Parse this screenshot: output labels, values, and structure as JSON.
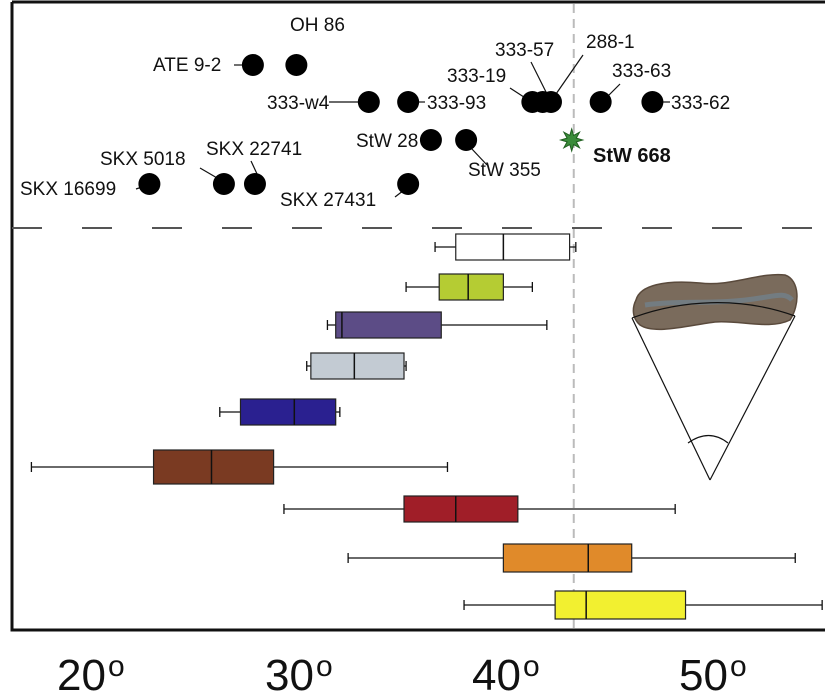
{
  "chart_data": {
    "type": "scatter",
    "xlabel": "",
    "ylabel": "",
    "x_axis": {
      "min": 15,
      "max": 55,
      "ticks": [
        20,
        30,
        40,
        50
      ],
      "tick_labels": [
        "20",
        "30",
        "40",
        "50"
      ],
      "degree_mark": "o"
    },
    "reference_line": {
      "x": 42.5,
      "style": "dashed",
      "color": "#bbbbbb"
    },
    "points": [
      {
        "label": "ATE 9-2",
        "x": 27.0,
        "row": 1
      },
      {
        "label": "OH 86",
        "x": 29.1,
        "row": 1
      },
      {
        "label": "333-w4",
        "x": 32.6,
        "row": 2
      },
      {
        "label": "333-93",
        "x": 34.5,
        "row": 2
      },
      {
        "label": "333-19",
        "x": 40.5,
        "row": 2
      },
      {
        "label": "333-57",
        "x": 41.0,
        "row": 2
      },
      {
        "label": "288-1",
        "x": 41.4,
        "row": 2
      },
      {
        "label": "333-63",
        "x": 43.8,
        "row": 2
      },
      {
        "label": "333-62",
        "x": 46.3,
        "row": 2
      },
      {
        "label": "StW 28",
        "x": 35.6,
        "row": 3
      },
      {
        "label": "StW 355",
        "x": 37.3,
        "row": 3
      },
      {
        "label": "SKX 16699",
        "x": 22.0,
        "row": 4
      },
      {
        "label": "SKX 5018",
        "x": 25.6,
        "row": 4
      },
      {
        "label": "SKX 22741",
        "x": 27.1,
        "row": 4
      },
      {
        "label": "SKX 27431",
        "x": 34.5,
        "row": 4
      }
    ],
    "highlight": {
      "label": "StW 668",
      "x": 42.4,
      "row": 3,
      "marker": "star",
      "color": "#3a8c3a"
    },
    "boxes": [
      {
        "min": 35.8,
        "q1": 36.8,
        "median": 39.1,
        "q3": 42.3,
        "max": 42.6,
        "color": "#ffffff"
      },
      {
        "min": 34.4,
        "q1": 36.0,
        "median": 37.4,
        "q3": 39.1,
        "max": 40.5,
        "color": "#b5cc33"
      },
      {
        "min": 30.6,
        "q1": 31.0,
        "median": 31.3,
        "q3": 36.1,
        "max": 41.2,
        "color": "#5c4c86"
      },
      {
        "min": 29.6,
        "q1": 29.8,
        "median": 31.9,
        "q3": 34.3,
        "max": 34.4,
        "color": "#c3cbd3"
      },
      {
        "min": 25.4,
        "q1": 26.4,
        "median": 29.0,
        "q3": 31.0,
        "max": 31.2,
        "color": "#2a2090"
      },
      {
        "min": 16.3,
        "q1": 22.2,
        "median": 25.0,
        "q3": 28.0,
        "max": 36.4,
        "color": "#7a3a22"
      },
      {
        "min": 28.5,
        "q1": 34.3,
        "median": 36.8,
        "q3": 39.8,
        "max": 47.4,
        "color": "#a01e28"
      },
      {
        "min": 31.6,
        "q1": 39.1,
        "median": 43.2,
        "q3": 45.3,
        "max": 53.2,
        "color": "#e08a2a"
      },
      {
        "min": 37.2,
        "q1": 41.6,
        "median": 43.1,
        "q3": 47.9,
        "max": 54.5,
        "color": "#f2f030"
      }
    ]
  },
  "colors": {
    "frame": "#111111",
    "point": "#000000",
    "divider": "#555555"
  },
  "inset_icon": "bone-angle-diagram"
}
